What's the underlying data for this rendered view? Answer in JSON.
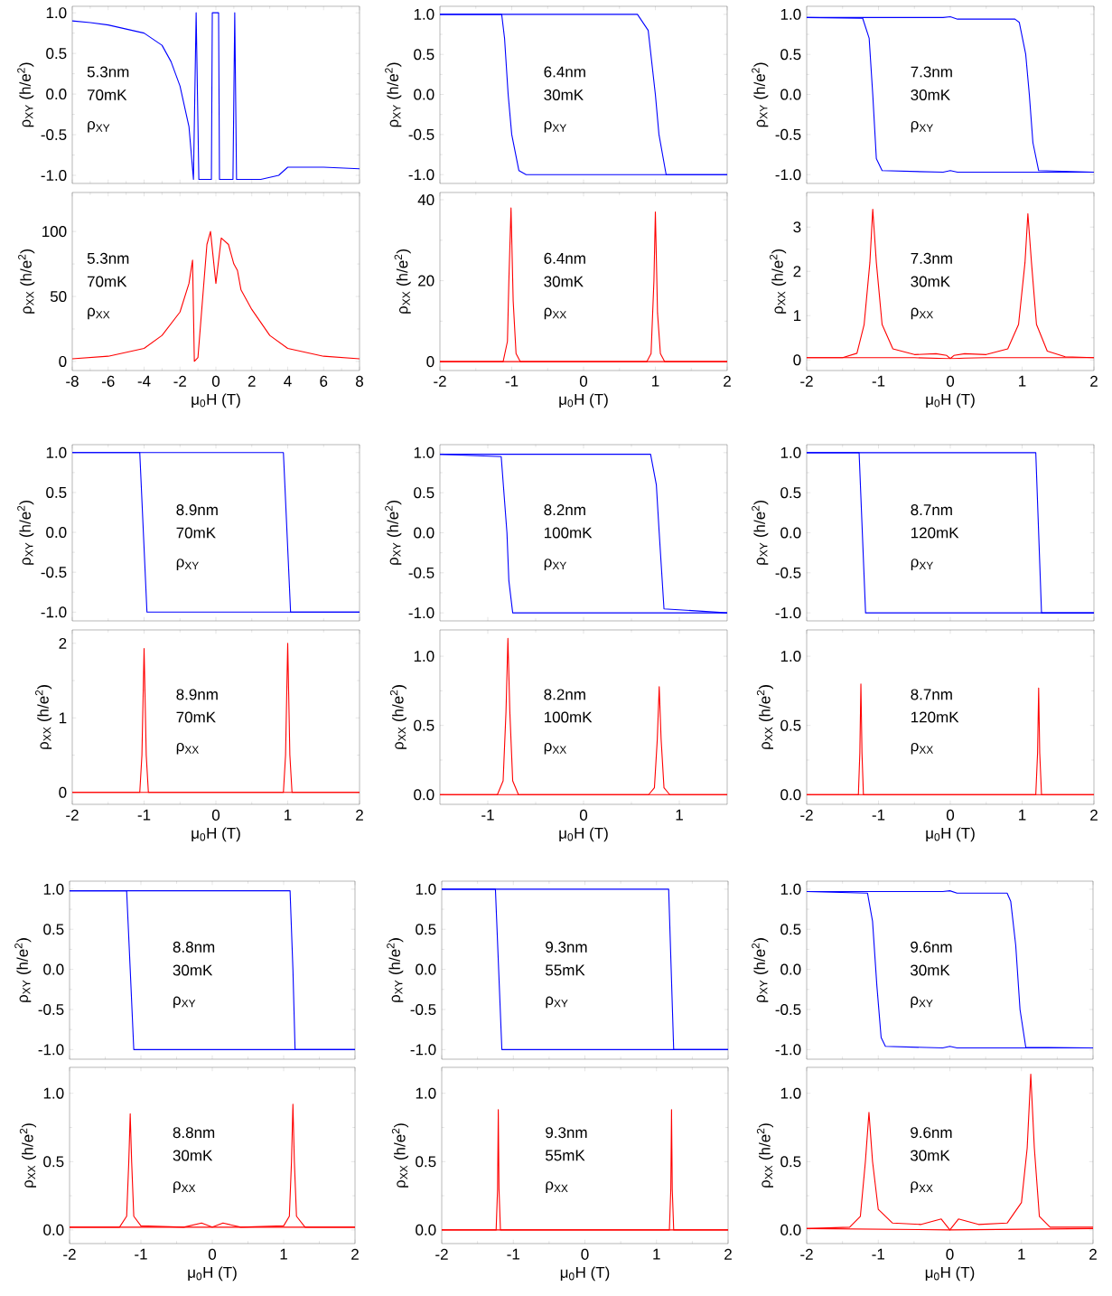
{
  "chart_data": [
    {
      "type": "line",
      "ylabel": "ρ$_{XY}$ (h/e$^{2}$)",
      "tick_labels": "y",
      "xlim": [
        -8,
        8
      ],
      "xticks": [
        -8,
        -6,
        -4,
        -2,
        0,
        2,
        4,
        6,
        8
      ],
      "ylim": [
        -1.1,
        1.08
      ],
      "yticks": [
        {
          "value": -1,
          "label": "-1.0"
        },
        {
          "value": -0.5,
          "label": "-0.5"
        },
        {
          "value": 0,
          "label": "0.0"
        },
        {
          "value": 0.5,
          "label": "0.5"
        },
        {
          "value": 1,
          "label": "1.0"
        }
      ],
      "annotations": [
        "5.3nm",
        "70mK",
        "ρ$_{XY}$"
      ],
      "series": [
        {
          "color": "#0000ff",
          "x": [
            -8,
            -7,
            -6,
            -5,
            -4,
            -3,
            -2.5,
            -2,
            -1.5,
            -1.25,
            -1.1,
            -0.95,
            -0.25,
            -0.2,
            0.15,
            0.2,
            0.95,
            1.05,
            1.15,
            2.5,
            3.5,
            4,
            6,
            8
          ],
          "values": [
            0.9,
            0.88,
            0.85,
            0.8,
            0.75,
            0.6,
            0.4,
            0.1,
            -0.4,
            -1.05,
            1.0,
            -1.05,
            -1.05,
            1.0,
            1.0,
            -1.05,
            -1.05,
            1.0,
            -1.05,
            -1.05,
            -1.0,
            -0.9,
            -0.9,
            -0.92
          ]
        }
      ]
    },
    {
      "type": "line",
      "ylabel": "ρ$_{XX}$ (h/e$^{2}$)",
      "xlabel": "μ$_{0}$H (T)",
      "xlim": [
        -8,
        8
      ],
      "xticks": [
        -8,
        -6,
        -4,
        -2,
        0,
        2,
        4,
        6,
        8
      ],
      "ylim": [
        -7,
        130
      ],
      "yticks": [
        0,
        50,
        100
      ],
      "annotations": [
        "5.3nm",
        "70mK",
        "ρ$_{XX}$"
      ],
      "series": [
        {
          "color": "#ff0000",
          "x": [
            -8,
            -6,
            -4,
            -3,
            -2,
            -1.5,
            -1.3,
            -1.2,
            -1,
            -0.5,
            -0.3,
            0,
            0.3,
            0.7,
            1,
            1.2,
            1.4,
            2,
            3,
            4,
            6,
            8
          ],
          "values": [
            2,
            4,
            10,
            20,
            38,
            60,
            78,
            0,
            3,
            90,
            100,
            60,
            95,
            90,
            75,
            70,
            55,
            40,
            20,
            10,
            4,
            2
          ]
        }
      ]
    },
    {
      "type": "line",
      "ylabel": "ρ$_{XY}$ (h/e$^{2}$)",
      "tick_labels": "y",
      "xlim": [
        -2,
        2
      ],
      "xticks": [
        -2,
        -1,
        0,
        1,
        2
      ],
      "ylim": [
        -1.11,
        1.1
      ],
      "yticks": [
        {
          "value": -1,
          "label": "-1.0"
        },
        {
          "value": -0.5,
          "label": "-0.5"
        },
        {
          "value": 0,
          "label": "0.0"
        },
        {
          "value": 0.5,
          "label": "0.5"
        },
        {
          "value": 1,
          "label": "1.0"
        }
      ],
      "annotations": [
        "6.4nm",
        "30mK",
        "ρ$_{XY}$"
      ],
      "series": [
        {
          "color": "#0000ff",
          "x": [
            2,
            -0.8,
            -0.9,
            -1.0,
            -1.05,
            -1.1,
            -1.14,
            -2
          ],
          "values": [
            -1,
            -1,
            -0.95,
            -0.5,
            0,
            0.7,
            1,
            1
          ]
        },
        {
          "color": "#0000ff",
          "x": [
            -2,
            0.75,
            0.9,
            1.0,
            1.05,
            1.15,
            2
          ],
          "values": [
            1,
            1,
            0.8,
            0,
            -0.5,
            -1,
            -1
          ]
        }
      ]
    },
    {
      "type": "line",
      "ylabel": "ρ$_{XX}$ (h/e$^{2}$)",
      "xlabel": "μ$_{0}$H (T)",
      "xlim": [
        -2,
        2
      ],
      "xticks": [
        -2,
        -1,
        0,
        1,
        2
      ],
      "ylim": [
        -2.2,
        41.8
      ],
      "yticks": [
        0,
        20,
        40
      ],
      "annotations": [
        "6.4nm",
        "30mK",
        "ρ$_{XX}$"
      ],
      "series": [
        {
          "color": "#ff0000",
          "x": [
            -2,
            -1.12,
            -1.06,
            -1.04,
            -1.01,
            -0.98,
            -0.94,
            -0.88,
            2
          ],
          "values": [
            0,
            0,
            5,
            20,
            38,
            15,
            2,
            0,
            0
          ]
        },
        {
          "color": "#ff0000",
          "x": [
            -2,
            0.88,
            0.94,
            0.98,
            1.0,
            1.03,
            1.07,
            1.13,
            2
          ],
          "values": [
            0,
            0,
            2,
            20,
            37,
            12,
            2,
            0,
            0
          ]
        }
      ]
    },
    {
      "type": "line",
      "ylabel": "ρ$_{XY}$ (h/e$^{2}$)",
      "tick_labels": "y",
      "xlim": [
        -2,
        2
      ],
      "xticks": [
        -2,
        -1,
        0,
        1,
        2
      ],
      "ylim": [
        -1.11,
        1.1
      ],
      "yticks": [
        {
          "value": -1,
          "label": "-1.0"
        },
        {
          "value": -0.5,
          "label": "-0.5"
        },
        {
          "value": 0,
          "label": "0.0"
        },
        {
          "value": 0.5,
          "label": "0.5"
        },
        {
          "value": 1,
          "label": "1.0"
        }
      ],
      "annotations": [
        "7.3nm",
        "30mK",
        "ρ$_{XY}$"
      ],
      "series": [
        {
          "color": "#0000ff",
          "x": [
            2,
            0.1,
            0,
            -0.1,
            -0.95,
            -1.03,
            -1.08,
            -1.13,
            -1.22,
            -2
          ],
          "values": [
            -0.97,
            -0.97,
            -0.95,
            -0.97,
            -0.95,
            -0.8,
            0,
            0.7,
            0.95,
            0.96
          ]
        },
        {
          "color": "#0000ff",
          "x": [
            -2,
            -0.1,
            0,
            0.1,
            0.9,
            0.96,
            1.05,
            1.1,
            1.15,
            1.23,
            2
          ],
          "values": [
            0.96,
            0.96,
            0.97,
            0.94,
            0.94,
            0.9,
            0.5,
            0,
            -0.6,
            -0.95,
            -0.97
          ]
        }
      ]
    },
    {
      "type": "line",
      "ylabel": "ρ$_{XX}$ (h/e$^{2}$)",
      "xlabel": "μ$_{0}$H (T)",
      "xlim": [
        -2,
        2
      ],
      "xticks": [
        -2,
        -1,
        0,
        1,
        2
      ],
      "ylim": [
        -0.24,
        3.78
      ],
      "yticks": [
        0,
        1,
        2,
        3
      ],
      "annotations": [
        "7.3nm",
        "30mK",
        "ρ$_{XX}$"
      ],
      "series": [
        {
          "color": "#ff0000",
          "x": [
            -2,
            -1.5,
            -1.3,
            -1.2,
            -1.12,
            -1.08,
            -1.03,
            -0.95,
            -0.8,
            -0.5,
            -0.2,
            -0.05,
            0,
            0.05,
            0.2,
            0.5,
            2
          ],
          "values": [
            0.05,
            0.05,
            0.15,
            0.8,
            2.2,
            3.4,
            2.2,
            0.8,
            0.25,
            0.12,
            0.14,
            0.1,
            0.03,
            0.03,
            0.04,
            0.05,
            0.05
          ]
        },
        {
          "color": "#ff0000",
          "x": [
            -2,
            -0.5,
            -0.05,
            0,
            0.05,
            0.2,
            0.5,
            0.8,
            0.95,
            1.04,
            1.08,
            1.13,
            1.2,
            1.35,
            1.6,
            2
          ],
          "values": [
            0.05,
            0.05,
            0.03,
            0.03,
            0.1,
            0.14,
            0.12,
            0.25,
            0.8,
            2.2,
            3.3,
            2.2,
            0.8,
            0.2,
            0.07,
            0.05
          ]
        }
      ]
    },
    {
      "type": "line",
      "ylabel": "ρ$_{XY}$ (h/e$^{2}$)",
      "tick_labels": "y",
      "xlim": [
        -2,
        2
      ],
      "xticks": [
        -2,
        -1,
        0,
        1,
        2
      ],
      "ylim": [
        -1.11,
        1.1
      ],
      "yticks": [
        {
          "value": -1,
          "label": "-1.0"
        },
        {
          "value": -0.5,
          "label": "-0.5"
        },
        {
          "value": 0,
          "label": "0.0"
        },
        {
          "value": 0.5,
          "label": "0.5"
        },
        {
          "value": 1,
          "label": "1.0"
        }
      ],
      "annotations": [
        "8.9nm",
        "70mK",
        "ρ$_{XY}$"
      ],
      "series": [
        {
          "color": "#0000ff",
          "x": [
            2,
            -0.96,
            -1.06,
            -2
          ],
          "values": [
            -1,
            -1,
            1,
            1
          ]
        },
        {
          "color": "#0000ff",
          "x": [
            -2,
            0.94,
            1.04,
            2
          ],
          "values": [
            1,
            1,
            -1,
            -1
          ]
        }
      ]
    },
    {
      "type": "line",
      "ylabel": "ρ$_{XX}$ (h/e$^{2}$)",
      "xlabel": "μ$_{0}$H (T)",
      "xlim": [
        -2,
        2
      ],
      "xticks": [
        -2,
        -1,
        0,
        1,
        2
      ],
      "ylim": [
        -0.16,
        2.18
      ],
      "yticks": [
        0,
        1,
        2
      ],
      "annotations": [
        "8.9nm",
        "70mK",
        "ρ$_{XX}$"
      ],
      "series": [
        {
          "color": "#ff0000",
          "x": [
            -2,
            -1.06,
            -1.03,
            -1.0,
            -0.97,
            -0.94,
            2
          ],
          "values": [
            0,
            0,
            0.5,
            1.93,
            0.5,
            0,
            0
          ]
        },
        {
          "color": "#ff0000",
          "x": [
            -2,
            0.94,
            0.97,
            1.0,
            1.03,
            1.06,
            2
          ],
          "values": [
            0,
            0,
            0.5,
            2.0,
            0.5,
            0,
            0
          ]
        }
      ]
    },
    {
      "type": "line",
      "ylabel": "ρ$_{XY}$ (h/e$^{2}$)",
      "tick_labels": "y",
      "xlim": [
        -1.5,
        1.5
      ],
      "xticks": [
        -1,
        0,
        1
      ],
      "ylim": [
        -1.1,
        1.1
      ],
      "yticks": [
        {
          "value": -1,
          "label": "-1.0"
        },
        {
          "value": -0.5,
          "label": "-0.5"
        },
        {
          "value": 0,
          "label": "0.0"
        },
        {
          "value": 0.5,
          "label": "0.5"
        },
        {
          "value": 1,
          "label": "1.0"
        }
      ],
      "annotations": [
        "8.2nm",
        "100mK",
        "ρ$_{XY}$"
      ],
      "series": [
        {
          "color": "#0000ff",
          "x": [
            1.5,
            -0.74,
            -0.78,
            -0.8,
            -0.86,
            -1.5
          ],
          "values": [
            -1,
            -1,
            -0.6,
            0,
            0.95,
            0.98
          ]
        },
        {
          "color": "#0000ff",
          "x": [
            -1.5,
            0.7,
            0.76,
            0.79,
            0.84,
            1.5
          ],
          "values": [
            0.98,
            0.98,
            0.6,
            0,
            -0.95,
            -1
          ]
        }
      ]
    },
    {
      "type": "line",
      "ylabel": "ρ$_{XX}$ (h/e$^{2}$)",
      "xlabel": "μ$_{0}$H (T)",
      "xlim": [
        -1.5,
        1.5
      ],
      "xticks": [
        -1,
        0,
        1
      ],
      "ylim": [
        -0.07,
        1.19
      ],
      "yticks": [
        {
          "value": 0,
          "label": "0.0"
        },
        {
          "value": 0.5,
          "label": "0.5"
        },
        {
          "value": 1,
          "label": "1.0"
        }
      ],
      "annotations": [
        "8.2nm",
        "100mK",
        "ρ$_{XX}$"
      ],
      "series": [
        {
          "color": "#ff0000",
          "x": [
            -1.5,
            -0.9,
            -0.84,
            -0.81,
            -0.79,
            -0.77,
            -0.74,
            -0.68,
            1.5
          ],
          "values": [
            0,
            0,
            0.1,
            0.6,
            1.13,
            0.6,
            0.1,
            0,
            0
          ]
        },
        {
          "color": "#ff0000",
          "x": [
            -1.5,
            0.68,
            0.74,
            0.77,
            0.79,
            0.81,
            0.84,
            0.9,
            1.5
          ],
          "values": [
            0,
            0,
            0.05,
            0.4,
            0.78,
            0.4,
            0.05,
            0,
            0
          ]
        }
      ]
    },
    {
      "type": "line",
      "ylabel": "ρ$_{XY}$ (h/e$^{2}$)",
      "tick_labels": "y",
      "xlim": [
        -2,
        2
      ],
      "xticks": [
        -2,
        -1,
        0,
        1,
        2
      ],
      "ylim": [
        -1.1,
        1.1
      ],
      "yticks": [
        {
          "value": -1,
          "label": "-1.0"
        },
        {
          "value": -0.5,
          "label": "-0.5"
        },
        {
          "value": 0,
          "label": "0.0"
        },
        {
          "value": 0.5,
          "label": "0.5"
        },
        {
          "value": 1,
          "label": "1.0"
        }
      ],
      "annotations": [
        "8.7nm",
        "120mK",
        "ρ$_{XY}$"
      ],
      "series": [
        {
          "color": "#0000ff",
          "x": [
            2,
            -1.18,
            -1.27,
            -2
          ],
          "values": [
            -1,
            -1,
            1,
            1
          ]
        },
        {
          "color": "#0000ff",
          "x": [
            -2,
            1.19,
            1.27,
            2
          ],
          "values": [
            1,
            1,
            -1,
            -1
          ]
        }
      ]
    },
    {
      "type": "line",
      "ylabel": "ρ$_{XX}$ (h/e$^{2}$)",
      "xlabel": "μ$_{0}$H (T)",
      "xlim": [
        -2,
        2
      ],
      "xticks": [
        -2,
        -1,
        0,
        1,
        2
      ],
      "ylim": [
        -0.07,
        1.19
      ],
      "yticks": [
        {
          "value": 0,
          "label": "0.0"
        },
        {
          "value": 0.5,
          "label": "0.5"
        },
        {
          "value": 1,
          "label": "1.0"
        }
      ],
      "annotations": [
        "8.7nm",
        "120mK",
        "ρ$_{XX}$"
      ],
      "series": [
        {
          "color": "#ff0000",
          "x": [
            -2,
            -1.28,
            -1.26,
            -1.245,
            -1.23,
            -1.21,
            2
          ],
          "values": [
            0,
            0,
            0.3,
            0.8,
            0.3,
            0,
            0
          ]
        },
        {
          "color": "#ff0000",
          "x": [
            -2,
            1.19,
            1.215,
            1.23,
            1.245,
            1.27,
            2
          ],
          "values": [
            0,
            0,
            0.3,
            0.77,
            0.3,
            0,
            0
          ]
        }
      ]
    },
    {
      "type": "line",
      "ylabel": "ρ$_{XY}$ (h/e$^{2}$)",
      "tick_labels": "y",
      "xlim": [
        -2,
        2
      ],
      "xticks": [
        -2,
        -1,
        0,
        1,
        2
      ],
      "ylim": [
        -1.12,
        1.1
      ],
      "yticks": [
        {
          "value": -1,
          "label": "-1.0"
        },
        {
          "value": -0.5,
          "label": "-0.5"
        },
        {
          "value": 0,
          "label": "0.0"
        },
        {
          "value": 0.5,
          "label": "0.5"
        },
        {
          "value": 1,
          "label": "1.0"
        }
      ],
      "annotations": [
        "8.8nm",
        "30mK",
        "ρ$_{XY}$"
      ],
      "series": [
        {
          "color": "#0000ff",
          "x": [
            2,
            -1.1,
            -1.15,
            -1.2,
            -2
          ],
          "values": [
            -1,
            -1,
            0,
            0.98,
            0.98
          ]
        },
        {
          "color": "#0000ff",
          "x": [
            -2,
            1.09,
            1.13,
            1.16,
            2
          ],
          "values": [
            0.98,
            0.98,
            0,
            -1,
            -1
          ]
        }
      ]
    },
    {
      "type": "line",
      "ylabel": "ρ$_{XX}$ (h/e$^{2}$)",
      "xlabel": "μ$_{0}$H (T)",
      "xlim": [
        -2,
        2
      ],
      "xticks": [
        -2,
        -1,
        0,
        1,
        2
      ],
      "ylim": [
        -0.1,
        1.19
      ],
      "yticks": [
        {
          "value": 0,
          "label": "0.0"
        },
        {
          "value": 0.5,
          "label": "0.5"
        },
        {
          "value": 1,
          "label": "1.0"
        }
      ],
      "annotations": [
        "8.8nm",
        "30mK",
        "ρ$_{XX}$"
      ],
      "series": [
        {
          "color": "#ff0000",
          "x": [
            -2,
            -1.3,
            -1.2,
            -1.17,
            -1.15,
            -1.13,
            -1.1,
            -1.0,
            -0.4,
            -0.15,
            0,
            2
          ],
          "values": [
            0.02,
            0.02,
            0.1,
            0.5,
            0.85,
            0.5,
            0.1,
            0.03,
            0.02,
            0.05,
            0.02,
            0.02
          ]
        },
        {
          "color": "#ff0000",
          "x": [
            -2,
            0,
            0.15,
            0.4,
            1.0,
            1.08,
            1.11,
            1.13,
            1.15,
            1.18,
            1.3,
            2
          ],
          "values": [
            0.02,
            0.02,
            0.05,
            0.02,
            0.03,
            0.1,
            0.5,
            0.92,
            0.5,
            0.1,
            0.02,
            0.02
          ]
        }
      ]
    },
    {
      "type": "line",
      "ylabel": "ρ$_{XY}$ (h/e$^{2}$)",
      "tick_labels": "y",
      "xlim": [
        -2,
        2
      ],
      "xticks": [
        -2,
        -1,
        0,
        1,
        2
      ],
      "ylim": [
        -1.12,
        1.1
      ],
      "yticks": [
        {
          "value": -1,
          "label": "-1.0"
        },
        {
          "value": -0.5,
          "label": "-0.5"
        },
        {
          "value": 0,
          "label": "0.0"
        },
        {
          "value": 0.5,
          "label": "0.5"
        },
        {
          "value": 1,
          "label": "1.0"
        }
      ],
      "annotations": [
        "9.3nm",
        "55mK",
        "ρ$_{XY}$"
      ],
      "series": [
        {
          "color": "#0000ff",
          "x": [
            2,
            -1.16,
            -1.25,
            -2
          ],
          "values": [
            -1,
            -1,
            1,
            1
          ]
        },
        {
          "color": "#0000ff",
          "x": [
            -2,
            1.17,
            1.24,
            2
          ],
          "values": [
            1,
            1,
            -1,
            -1
          ]
        }
      ]
    },
    {
      "type": "line",
      "ylabel": "ρ$_{XX}$ (h/e$^{2}$)",
      "xlabel": "μ$_{0}$H (T)",
      "xlim": [
        -2,
        2
      ],
      "xticks": [
        -2,
        -1,
        0,
        1,
        2
      ],
      "ylim": [
        -0.1,
        1.19
      ],
      "yticks": [
        {
          "value": 0,
          "label": "0.0"
        },
        {
          "value": 0.5,
          "label": "0.5"
        },
        {
          "value": 1,
          "label": "1.0"
        }
      ],
      "annotations": [
        "9.3nm",
        "55mK",
        "ρ$_{XX}$"
      ],
      "series": [
        {
          "color": "#ff0000",
          "x": [
            -2,
            -1.24,
            -1.22,
            -1.21,
            -1.2,
            -1.18,
            2
          ],
          "values": [
            0,
            0,
            0.3,
            0.88,
            0.3,
            0,
            0
          ]
        },
        {
          "color": "#ff0000",
          "x": [
            -2,
            1.18,
            1.2,
            1.21,
            1.22,
            1.24,
            2
          ],
          "values": [
            0,
            0,
            0.3,
            0.88,
            0.3,
            0,
            0
          ]
        }
      ]
    },
    {
      "type": "line",
      "ylabel": "ρ$_{XY}$ (h/e$^{2}$)",
      "tick_labels": "y",
      "xlim": [
        -2,
        2
      ],
      "xticks": [
        -2,
        -1,
        0,
        1,
        2
      ],
      "ylim": [
        -1.12,
        1.1
      ],
      "yticks": [
        {
          "value": -1,
          "label": "-1.0"
        },
        {
          "value": -0.5,
          "label": "-0.5"
        },
        {
          "value": 0,
          "label": "0.0"
        },
        {
          "value": 0.5,
          "label": "0.5"
        },
        {
          "value": 1,
          "label": "1.0"
        }
      ],
      "annotations": [
        "9.6nm",
        "30mK",
        "ρ$_{XY}$"
      ],
      "series": [
        {
          "color": "#0000ff",
          "x": [
            2,
            0.1,
            0,
            -0.1,
            -0.9,
            -0.96,
            -1.02,
            -1.08,
            -1.15,
            -2
          ],
          "values": [
            -0.98,
            -0.98,
            -0.96,
            -0.98,
            -0.96,
            -0.85,
            -0.2,
            0.6,
            0.95,
            0.97
          ]
        },
        {
          "color": "#0000ff",
          "x": [
            -2,
            -0.1,
            0,
            0.1,
            0.8,
            0.85,
            0.92,
            0.98,
            1.06,
            2
          ],
          "values": [
            0.97,
            0.97,
            0.98,
            0.95,
            0.95,
            0.85,
            0.3,
            -0.5,
            -0.97,
            -0.98
          ]
        }
      ]
    },
    {
      "type": "line",
      "ylabel": "ρ$_{XX}$ (h/e$^{2}$)",
      "xlabel": "μ$_{0}$H (T)",
      "xlim": [
        -2,
        2
      ],
      "xticks": [
        -2,
        -1,
        0,
        1,
        2
      ],
      "ylim": [
        -0.1,
        1.19
      ],
      "yticks": [
        {
          "value": 0,
          "label": "0.0"
        },
        {
          "value": 0.5,
          "label": "0.5"
        },
        {
          "value": 1,
          "label": "1.0"
        }
      ],
      "annotations": [
        "9.6nm",
        "30mK",
        "ρ$_{XX}$"
      ],
      "series": [
        {
          "color": "#ff0000",
          "x": [
            -2,
            -1.4,
            -1.25,
            -1.18,
            -1.13,
            -1.08,
            -1.0,
            -0.8,
            -0.4,
            -0.12,
            0,
            2
          ],
          "values": [
            0.01,
            0.02,
            0.1,
            0.5,
            0.86,
            0.5,
            0.15,
            0.05,
            0.04,
            0.08,
            0.0,
            0.01
          ]
        },
        {
          "color": "#ff0000",
          "x": [
            -2,
            0,
            0.12,
            0.4,
            0.8,
            1.0,
            1.08,
            1.13,
            1.18,
            1.25,
            1.4,
            2
          ],
          "values": [
            0.01,
            0.0,
            0.08,
            0.04,
            0.05,
            0.2,
            0.6,
            1.14,
            0.6,
            0.1,
            0.02,
            0.02
          ]
        }
      ]
    }
  ]
}
